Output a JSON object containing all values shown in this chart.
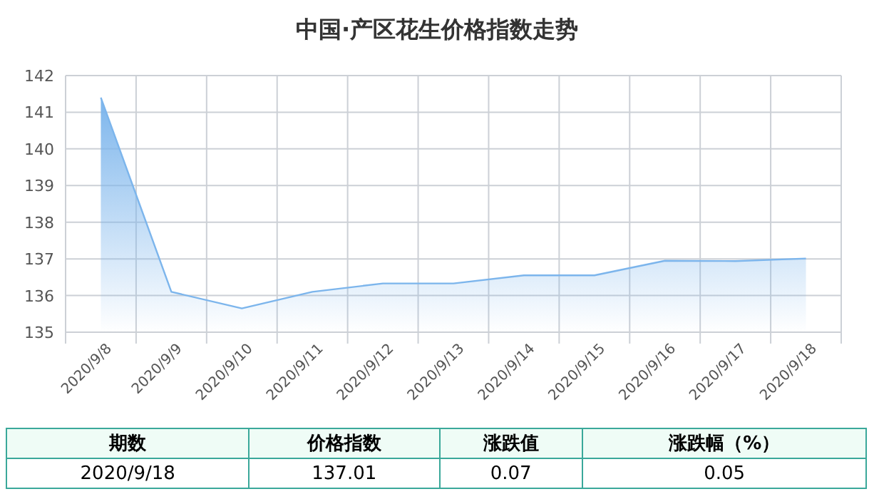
{
  "chart_data": {
    "type": "area",
    "title": "中国·产区花生价格指数走势",
    "categories": [
      "2020/9/8",
      "2020/9/9",
      "2020/9/10",
      "2020/9/11",
      "2020/9/12",
      "2020/9/13",
      "2020/9/14",
      "2020/9/15",
      "2020/9/16",
      "2020/9/17",
      "2020/9/18"
    ],
    "series": [
      {
        "color": "#7cb5ec",
        "values": [
          141.4,
          136.1,
          135.65,
          136.1,
          136.33,
          136.33,
          136.55,
          136.55,
          136.95,
          136.94,
          137.01
        ]
      }
    ],
    "ylim": [
      135,
      142
    ],
    "yticks": [
      135,
      136,
      137,
      138,
      139,
      140,
      141,
      142
    ],
    "grid": true,
    "annotations": [
      "期数",
      "价格指数",
      "涨跌值",
      "涨跌幅（%）",
      "2020/9/18",
      "137.01",
      "0.07",
      "0.05"
    ]
  }
}
